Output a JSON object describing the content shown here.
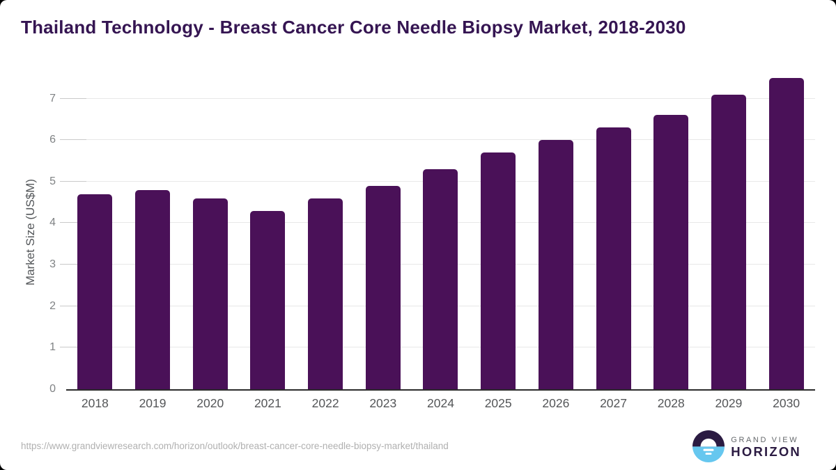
{
  "header": {
    "title": "Thailand Technology - Breast Cancer Core Needle Biopsy Market, 2018-2030"
  },
  "chart_data": {
    "type": "bar",
    "title": "Thailand Technology - Breast Cancer Core Needle Biopsy Market, 2018-2030",
    "xlabel": "",
    "ylabel": "Market Size (US$M)",
    "categories": [
      "2018",
      "2019",
      "2020",
      "2021",
      "2022",
      "2023",
      "2024",
      "2025",
      "2026",
      "2027",
      "2028",
      "2029",
      "2030"
    ],
    "values": [
      4.7,
      4.8,
      4.6,
      4.3,
      4.6,
      4.9,
      5.3,
      5.7,
      6.0,
      6.3,
      6.6,
      7.1,
      7.5
    ],
    "ylim": [
      0,
      7.58
    ],
    "yticks": [
      0,
      1,
      2,
      3,
      4,
      5,
      6,
      7
    ],
    "grid": "horizontal-light",
    "legend": "none"
  },
  "footer": {
    "source_url": "https://www.grandviewresearch.com/horizon/outlook/breast-cancer-core-needle-biopsy-market/thailand",
    "logo": {
      "line1": "GRAND VIEW",
      "line2": "HORIZON"
    }
  },
  "colors": {
    "title_text": "#351552",
    "bar": "#4a1158",
    "axis_line": "#2b2b2b",
    "gridline": "#e8e8e8",
    "grid_tick": "#c9c9c9",
    "y_tick_text": "#7f8284",
    "x_label_text": "#545658",
    "y_axis_title_text": "#54575a",
    "url_text": "#b0b0b0",
    "logo_purple": "#2b1b42",
    "logo_blue": "#66c7ef",
    "logo_gray_text": "#63676a"
  }
}
